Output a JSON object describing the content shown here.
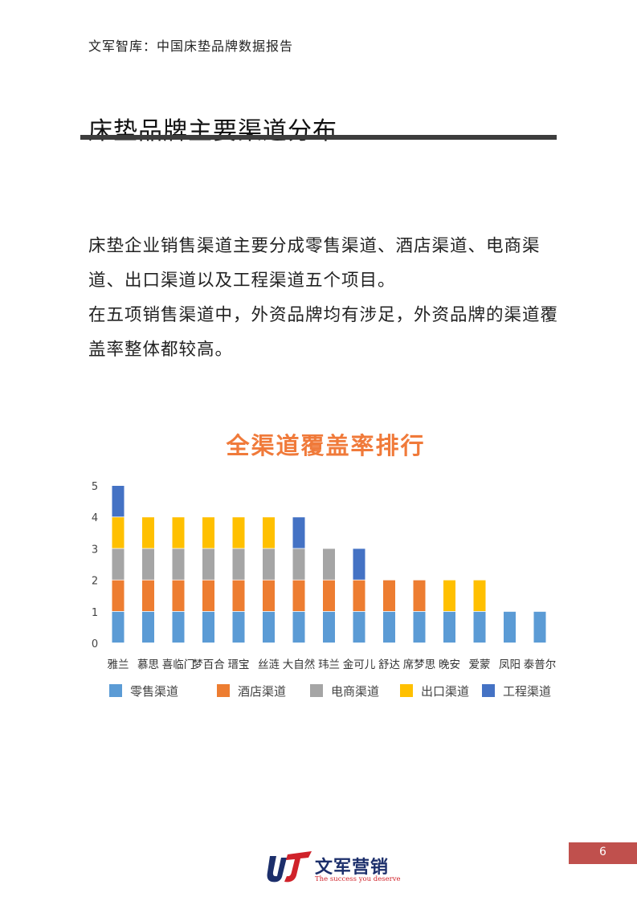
{
  "header": {
    "title": "文军智库：中国床垫品牌数据报告"
  },
  "page": {
    "title": "床垫品牌主要渠道分布",
    "number": "6"
  },
  "body": {
    "paragraph1": "床垫企业销售渠道主要分成零售渠道、酒店渠道、电商渠道、出口渠道以及工程渠道五个项目。",
    "paragraph2": "在五项销售渠道中，外资品牌均有涉足，外资品牌的渠道覆盖率整体都较高。"
  },
  "chart_data": {
    "type": "bar",
    "stacked": true,
    "title": "全渠道覆盖率排行",
    "categories": [
      "雅兰",
      "慕思",
      "喜临门",
      "梦百合",
      "瑨宝",
      "丝涟",
      "大自然",
      "玮兰",
      "金可儿",
      "舒达",
      "席梦思",
      "晚安",
      "爱蒙",
      "凤阳",
      "泰普尔"
    ],
    "series": [
      {
        "name": "零售渠道",
        "color": "#5b9bd5",
        "values": [
          1,
          1,
          1,
          1,
          1,
          1,
          1,
          1,
          1,
          1,
          1,
          1,
          1,
          1,
          1
        ]
      },
      {
        "name": "酒店渠道",
        "color": "#ed7d31",
        "values": [
          1,
          1,
          1,
          1,
          1,
          1,
          1,
          1,
          1,
          1,
          1,
          0,
          0,
          0,
          0
        ]
      },
      {
        "name": "电商渠道",
        "color": "#a5a5a5",
        "values": [
          1,
          1,
          1,
          1,
          1,
          1,
          1,
          1,
          0,
          0,
          0,
          0,
          0,
          0,
          0
        ]
      },
      {
        "name": "出口渠道",
        "color": "#ffc000",
        "values": [
          1,
          1,
          1,
          1,
          1,
          1,
          0,
          0,
          0,
          0,
          0,
          1,
          1,
          0,
          0
        ]
      },
      {
        "name": "工程渠道",
        "color": "#4472c4",
        "values": [
          1,
          0,
          0,
          0,
          0,
          0,
          1,
          0,
          1,
          0,
          0,
          0,
          0,
          0,
          0
        ]
      }
    ],
    "yticks": [
      "0",
      "1",
      "2",
      "3",
      "4",
      "5"
    ],
    "ylim": [
      0,
      5
    ],
    "grid": false,
    "legend": "bottom"
  },
  "footer": {
    "logo_text": "文军营销",
    "slogan": "The success you deserve",
    "logo_icon": "wj-logo-icon"
  }
}
